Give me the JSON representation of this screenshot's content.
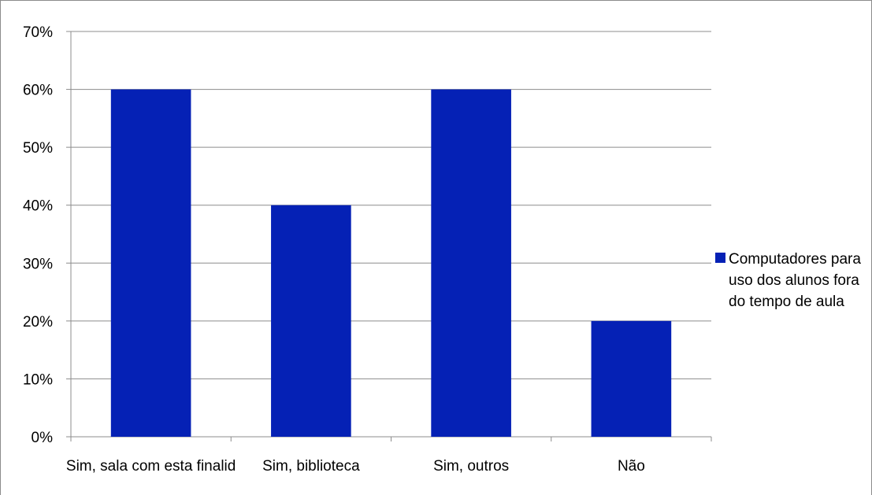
{
  "chart_data": {
    "type": "bar",
    "categories": [
      "Sim, sala com esta finalidade",
      "Sim, biblioteca",
      "Sim, outros",
      "Não"
    ],
    "category_labels_shown": [
      "Sim, sala com esta finalid",
      "Sim, biblioteca",
      "Sim, outros",
      "Não"
    ],
    "series": [
      {
        "name": "Computadores para uso dos alunos fora do tempo de aula",
        "values": [
          60,
          40,
          60,
          20
        ]
      }
    ],
    "y_ticks": [
      "0%",
      "10%",
      "20%",
      "30%",
      "40%",
      "50%",
      "60%",
      "70%"
    ],
    "ylim": [
      0,
      70
    ],
    "title": "",
    "xlabel": "",
    "ylabel": "",
    "grid": true,
    "legend_position": "right",
    "bar_color": "#0521B5",
    "grid_color": "#8c8c8c"
  },
  "legend": {
    "label": "Computadores para uso dos alunos fora do tempo de aula"
  }
}
